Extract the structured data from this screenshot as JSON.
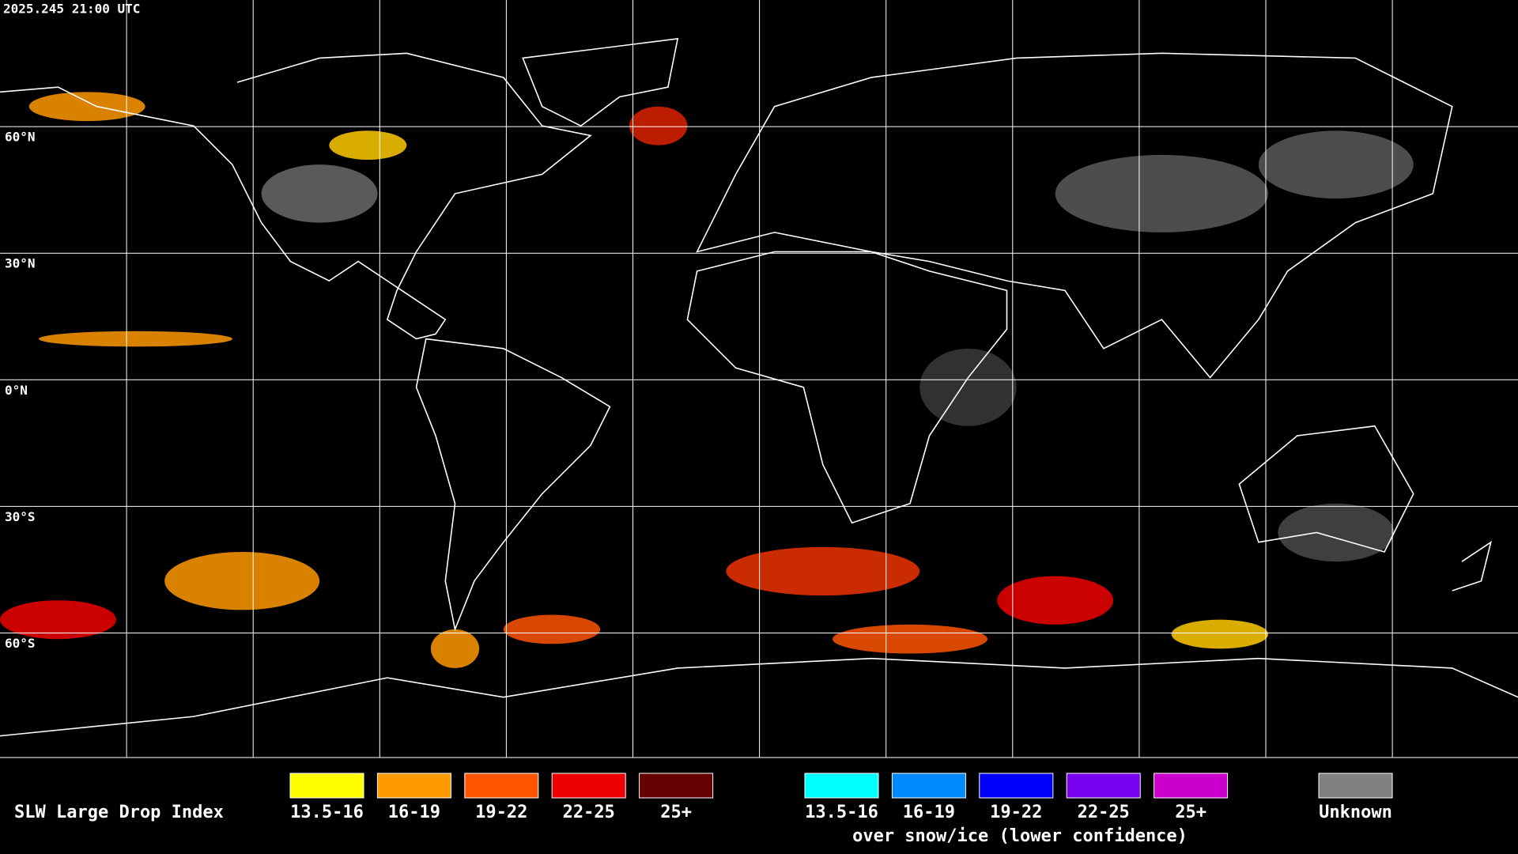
{
  "timestamp": "2025.245 21:00 UTC",
  "lat_labels": [
    "60°N",
    "30°N",
    "0°N",
    "30°S",
    "60°S"
  ],
  "legend": {
    "title": "SLW Large Drop Index",
    "items": [
      {
        "label": "13.5-16",
        "color": "#ffff00"
      },
      {
        "label": "16-19",
        "color": "#ff9900"
      },
      {
        "label": "19-22",
        "color": "#ff5500"
      },
      {
        "label": "22-25",
        "color": "#ee0000"
      },
      {
        "label": "25+",
        "color": "#660000"
      }
    ],
    "snow_items": [
      {
        "label": "13.5-16",
        "color": "#00ffff"
      },
      {
        "label": "16-19",
        "color": "#0088ff"
      },
      {
        "label": "19-22",
        "color": "#0000ff"
      },
      {
        "label": "22-25",
        "color": "#7700ee"
      },
      {
        "label": "25+",
        "color": "#cc00cc"
      }
    ],
    "snow_caption": "over snow/ice (lower confidence)",
    "unknown": {
      "label": "Unknown",
      "color": "#808080"
    }
  }
}
